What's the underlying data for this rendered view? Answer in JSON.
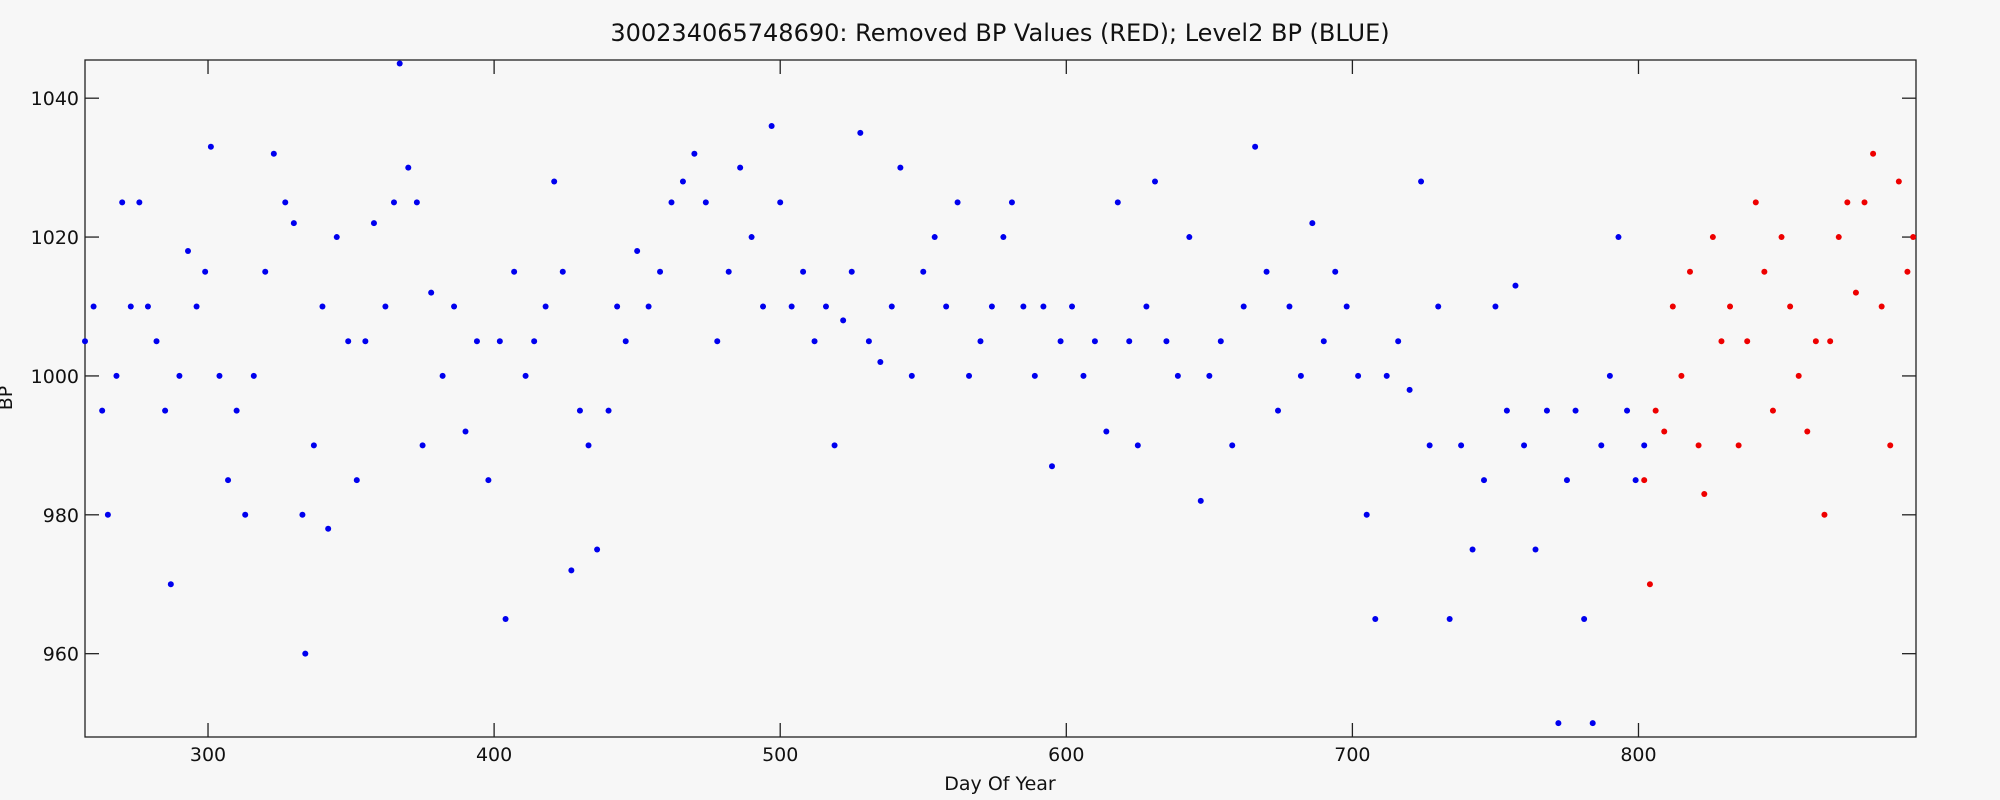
{
  "chart_data": {
    "type": "scatter",
    "title": "300234065748690: Removed BP Values (RED); Level2 BP (BLUE)",
    "x_label": "Day Of Year",
    "y_label": "BP",
    "xlim": [
      257,
      897
    ],
    "ylim": [
      948,
      1045.5
    ],
    "xticks": [
      300,
      400,
      500,
      600,
      700,
      800
    ],
    "yticks": [
      960,
      980,
      1000,
      1020,
      1040
    ],
    "grid": false,
    "series": [
      {
        "color": "#0000ee",
        "x": [
          257,
          260,
          263,
          265,
          268,
          270,
          273,
          276,
          279,
          282,
          285,
          287,
          290,
          293,
          296,
          299,
          301,
          304,
          307,
          310,
          313,
          316,
          320,
          323,
          327,
          330,
          333,
          334,
          337,
          340,
          342,
          345,
          349,
          352,
          355,
          358,
          362,
          365,
          367,
          370,
          373,
          375,
          378,
          382,
          386,
          390,
          394,
          398,
          402,
          404,
          407,
          411,
          414,
          418,
          421,
          424,
          427,
          430,
          433,
          436,
          440,
          443,
          446,
          450,
          454,
          458,
          462,
          466,
          470,
          474,
          478,
          482,
          486,
          490,
          494,
          497,
          500,
          504,
          508,
          512,
          516,
          519,
          522,
          525,
          528,
          531,
          535,
          539,
          542,
          546,
          550,
          554,
          558,
          562,
          566,
          570,
          574,
          578,
          581,
          585,
          589,
          592,
          595,
          598,
          602,
          606,
          610,
          614,
          618,
          622,
          625,
          628,
          631,
          635,
          639,
          643,
          647,
          650,
          654,
          658,
          662,
          666,
          670,
          674,
          678,
          682,
          686,
          690,
          694,
          698,
          702,
          705,
          708,
          712,
          716,
          720,
          724,
          727,
          730,
          734,
          738,
          742,
          746,
          750,
          754,
          757,
          760,
          764,
          768,
          772,
          775,
          778,
          781,
          784,
          787,
          790,
          793,
          796,
          799,
          802
        ],
        "values": [
          1005,
          1010,
          995,
          980,
          1000,
          1025,
          1010,
          1025,
          1010,
          1005,
          995,
          970,
          1000,
          1018,
          1010,
          1015,
          1033,
          1000,
          985,
          995,
          980,
          1000,
          1015,
          1032,
          1025,
          1022,
          980,
          960,
          990,
          1010,
          978,
          1020,
          1005,
          985,
          1005,
          1022,
          1010,
          1025,
          1045,
          1030,
          1025,
          990,
          1012,
          1000,
          1010,
          992,
          1005,
          985,
          1005,
          965,
          1015,
          1000,
          1005,
          1010,
          1028,
          1015,
          972,
          995,
          990,
          975,
          995,
          1010,
          1005,
          1018,
          1010,
          1015,
          1025,
          1028,
          1032,
          1025,
          1005,
          1015,
          1030,
          1020,
          1010,
          1036,
          1025,
          1010,
          1015,
          1005,
          1010,
          990,
          1008,
          1015,
          1035,
          1005,
          1002,
          1010,
          1030,
          1000,
          1015,
          1020,
          1010,
          1025,
          1000,
          1005,
          1010,
          1020,
          1025,
          1010,
          1000,
          1010,
          987,
          1005,
          1010,
          1000,
          1005,
          992,
          1025,
          1005,
          990,
          1010,
          1028,
          1005,
          1000,
          1020,
          982,
          1000,
          1005,
          990,
          1010,
          1033,
          1015,
          995,
          1010,
          1000,
          1022,
          1005,
          1015,
          1010,
          1000,
          980,
          965,
          1000,
          1005,
          998,
          1028,
          990,
          1010,
          965,
          990,
          975,
          985,
          1010,
          995,
          1013,
          990,
          975,
          995,
          950,
          985,
          995,
          965,
          950,
          990,
          1000,
          1020,
          995,
          985,
          990
        ]
      },
      {
        "color": "#ee0000",
        "x": [
          802,
          804,
          806,
          809,
          812,
          815,
          818,
          821,
          823,
          826,
          829,
          832,
          835,
          838,
          841,
          844,
          847,
          850,
          853,
          856,
          859,
          862,
          865,
          867,
          870,
          873,
          876,
          879,
          882,
          885,
          888,
          891,
          894,
          896
        ],
        "values": [
          985,
          970,
          995,
          992,
          1010,
          1000,
          1015,
          990,
          983,
          1020,
          1005,
          1010,
          990,
          1005,
          1025,
          1015,
          995,
          1020,
          1010,
          1000,
          992,
          1005,
          980,
          1005,
          1020,
          1025,
          1012,
          1025,
          1032,
          1010,
          990,
          1028,
          1015,
          1020
        ]
      }
    ]
  }
}
